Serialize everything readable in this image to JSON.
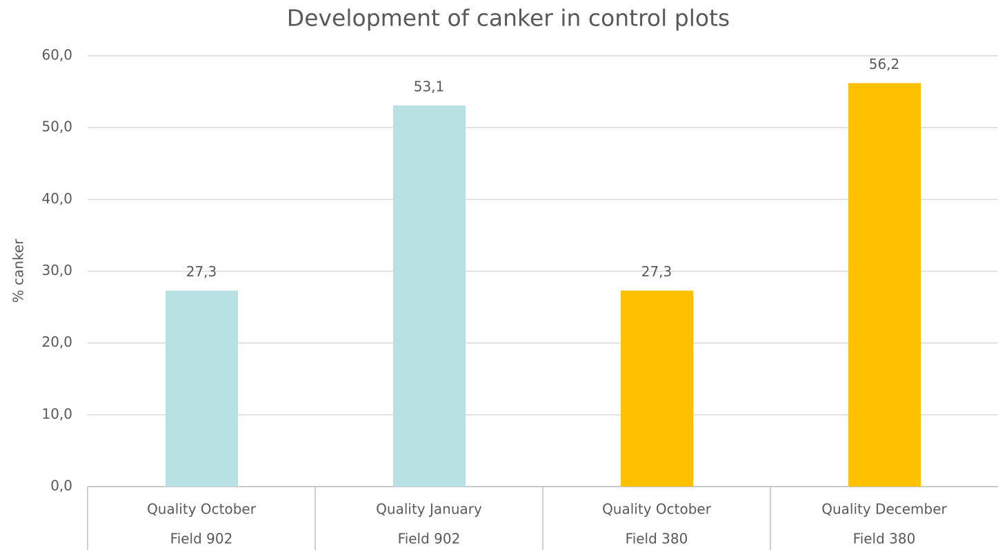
{
  "chart_data": {
    "type": "bar",
    "title": "Development of canker in control plots",
    "y_label": "% canker",
    "categories": [
      "Quality October",
      "Quality January",
      "Quality October",
      "Quality December"
    ],
    "subcategories": [
      "Field 902",
      "Field 902",
      "Field 380",
      "Field 380"
    ],
    "values": [
      27.3,
      53.1,
      27.3,
      56.2
    ],
    "value_labels": [
      "27,3",
      "53,1",
      "27,3",
      "56,2"
    ],
    "colors": [
      "#b9e0e3",
      "#b9e0e3",
      "#ffc000",
      "#ffc000"
    ],
    "ylim": [
      0,
      60
    ],
    "yticks": [
      {
        "value": 0,
        "label": "0,0"
      },
      {
        "value": 10,
        "label": "10,0"
      },
      {
        "value": 20,
        "label": "20,0"
      },
      {
        "value": 30,
        "label": "30,0"
      },
      {
        "value": 40,
        "label": "40,0"
      },
      {
        "value": 50,
        "label": "50,0"
      },
      {
        "value": 60,
        "label": "60,0"
      }
    ],
    "grid": true
  }
}
